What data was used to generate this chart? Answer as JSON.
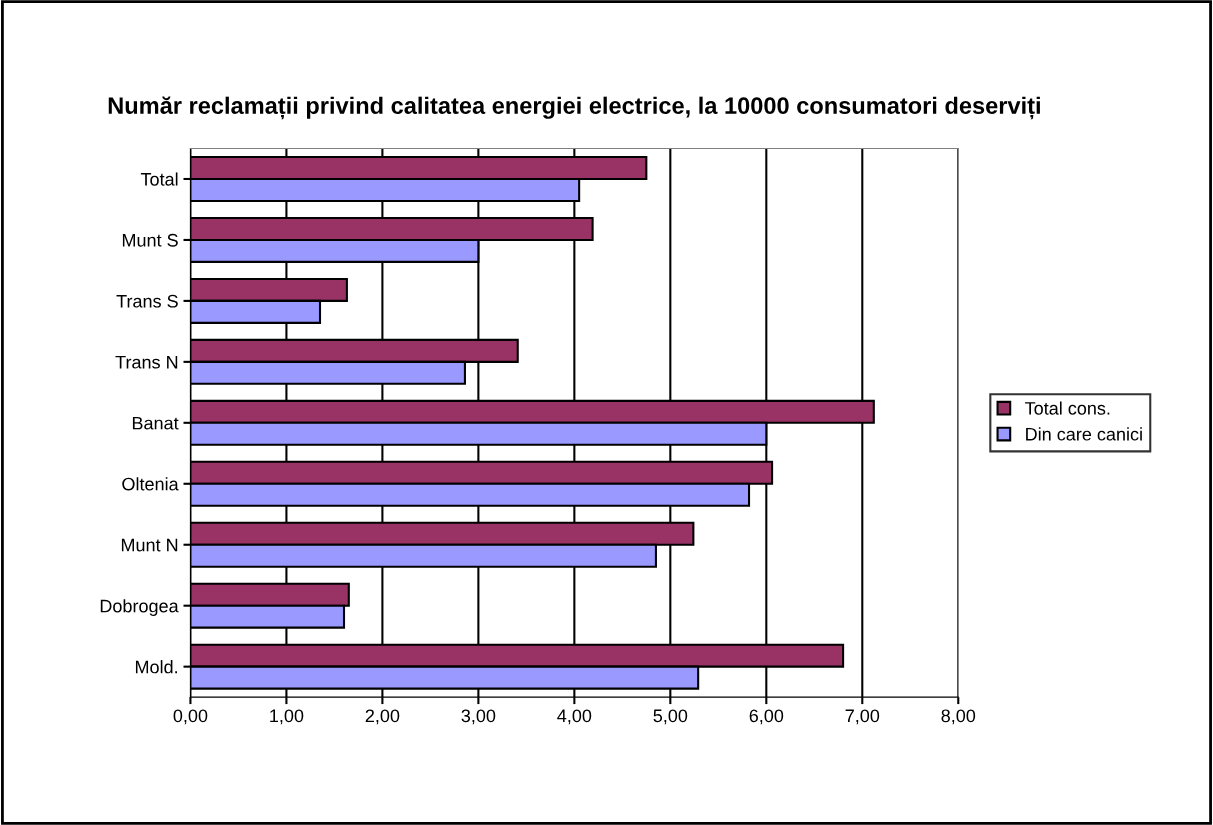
{
  "chart_data": {
    "type": "bar",
    "orientation": "horizontal",
    "title": "Număr reclamații privind calitatea energiei electrice, la 10000 consumatori deserviți",
    "categories": [
      "Total",
      "Munt S",
      "Trans S",
      "Trans N",
      "Banat",
      "Oltenia",
      "Munt N",
      "Dobrogea",
      "Mold."
    ],
    "series": [
      {
        "name": "Total cons.",
        "color": "#993366",
        "values": [
          4.75,
          4.19,
          1.63,
          3.41,
          7.12,
          6.06,
          5.24,
          1.65,
          6.8
        ]
      },
      {
        "name": "Din care canici",
        "color": "#9999ff",
        "values": [
          4.05,
          3.0,
          1.35,
          2.86,
          6.0,
          5.82,
          4.85,
          1.6,
          5.29
        ]
      }
    ],
    "xlim": [
      0,
      8
    ],
    "xticks": [
      {
        "value": 0,
        "label": "0,00"
      },
      {
        "value": 1,
        "label": "1,00"
      },
      {
        "value": 2,
        "label": "2,00"
      },
      {
        "value": 3,
        "label": "3,00"
      },
      {
        "value": 4,
        "label": "4,00"
      },
      {
        "value": 5,
        "label": "5,00"
      },
      {
        "value": 6,
        "label": "6,00"
      },
      {
        "value": 7,
        "label": "7,00"
      },
      {
        "value": 8,
        "label": "8,00"
      }
    ],
    "grid": "x",
    "legend": "right"
  }
}
